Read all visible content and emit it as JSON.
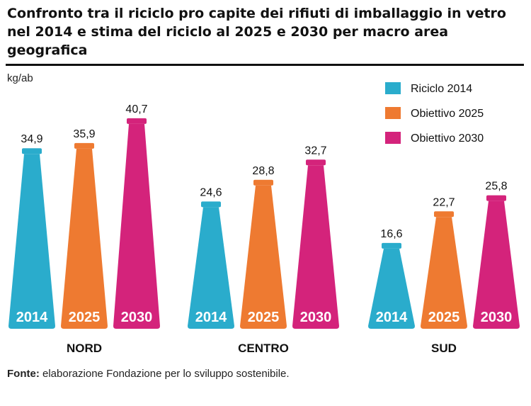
{
  "title": "Confronto tra il riciclo pro capite dei rifiuti di imballaggio in vetro nel 2014 e stima del riciclo al 2025 e 2030 per macro area geografica",
  "unit": "kg/ab",
  "source": {
    "label": "Fonte:",
    "text": "elaborazione Fondazione per lo sviluppo sostenibile."
  },
  "chart_data": {
    "type": "bar",
    "ylabel": "kg/ab",
    "categories": [
      "NORD",
      "CENTRO",
      "SUD"
    ],
    "series": [
      {
        "name": "Riciclo 2014",
        "bar_label": "2014",
        "color": "#2aaccc",
        "values": [
          34.9,
          24.6,
          16.6
        ],
        "labels": [
          "34,9",
          "24,6",
          "16,6"
        ]
      },
      {
        "name": "Obiettivo 2025",
        "bar_label": "2025",
        "color": "#ee7a31",
        "values": [
          35.9,
          28.8,
          22.7
        ],
        "labels": [
          "35,9",
          "28,8",
          "22,7"
        ]
      },
      {
        "name": "Obiettivo 2030",
        "bar_label": "2030",
        "color": "#d4237b",
        "values": [
          40.7,
          32.7,
          25.8
        ],
        "labels": [
          "40,7",
          "32,7",
          "25,8"
        ]
      }
    ],
    "legend_position": "top-right",
    "grid": false
  }
}
